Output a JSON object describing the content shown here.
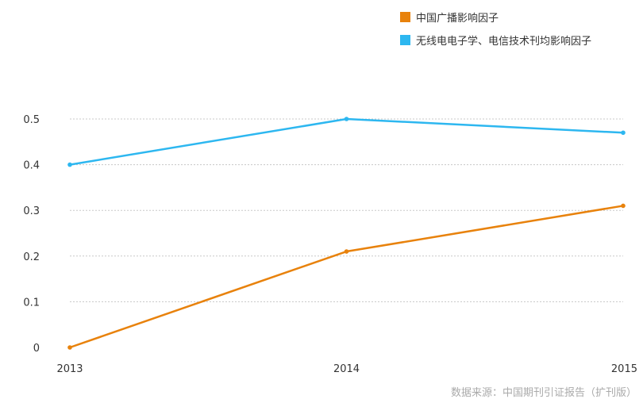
{
  "chart_data": {
    "type": "line",
    "x": [
      "2013",
      "2014",
      "2015"
    ],
    "series": [
      {
        "name": "中国广播影响因子",
        "color": "#E8820C",
        "values": [
          0,
          0.21,
          0.31
        ]
      },
      {
        "name": "无线电电子学、电信技术刊均影响因子",
        "color": "#2DB7F0",
        "values": [
          0.4,
          0.5,
          0.47
        ]
      }
    ],
    "yticks": [
      0,
      0.1,
      0.2,
      0.3,
      0.4,
      0.5
    ],
    "ytick_labels": [
      "0",
      "0.1",
      "0.2",
      "0.3",
      "0.4",
      "0.5"
    ],
    "ylim": [
      0,
      0.5
    ],
    "grid": "dashed-horizontal",
    "legend_position": "top-right"
  },
  "source": "数据来源：中国期刊引证报告（扩刊版）"
}
